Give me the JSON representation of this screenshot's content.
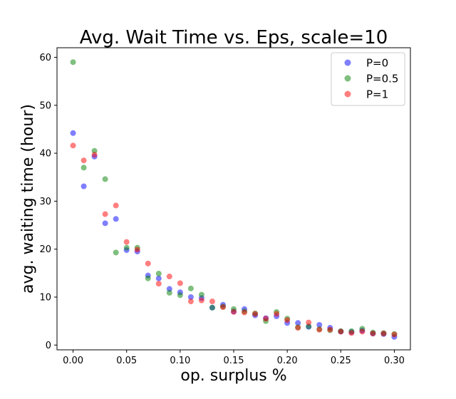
{
  "chart_data": {
    "type": "scatter",
    "title": "Avg. Wait Time vs. Eps, scale=10",
    "xlabel": "op. surplus %",
    "ylabel": "avg. waiting time (hour)",
    "xlim": [
      -0.015,
      0.315
    ],
    "ylim": [
      -1.0,
      62.0
    ],
    "xticks": [
      0.0,
      0.05,
      0.1,
      0.15,
      0.2,
      0.25,
      0.3
    ],
    "xtick_labels": [
      "0.00",
      "0.05",
      "0.10",
      "0.15",
      "0.20",
      "0.25",
      "0.30"
    ],
    "yticks": [
      0,
      10,
      20,
      30,
      40,
      50,
      60
    ],
    "ytick_labels": [
      "0",
      "10",
      "20",
      "30",
      "40",
      "50",
      "60"
    ],
    "grid": false,
    "legend_position": "top-right",
    "x": [
      0.0,
      0.01,
      0.02,
      0.03,
      0.04,
      0.05,
      0.06,
      0.07,
      0.08,
      0.09,
      0.1,
      0.11,
      0.12,
      0.13,
      0.14,
      0.15,
      0.16,
      0.17,
      0.18,
      0.19,
      0.2,
      0.21,
      0.22,
      0.23,
      0.24,
      0.25,
      0.26,
      0.27,
      0.28,
      0.29,
      0.3
    ],
    "series": [
      {
        "name": "P=0",
        "color": "#0000ff",
        "values": [
          44.2,
          33.1,
          39.3,
          25.4,
          26.3,
          19.8,
          19.5,
          14.5,
          13.9,
          11.7,
          11.0,
          10.0,
          9.8,
          7.8,
          8.4,
          7.0,
          7.5,
          6.2,
          5.6,
          6.0,
          4.6,
          4.6,
          3.8,
          4.2,
          3.6,
          2.8,
          2.7,
          3.0,
          2.4,
          2.3,
          1.7
        ]
      },
      {
        "name": "P=0.5",
        "color": "#008000",
        "values": [
          59.0,
          37.0,
          40.5,
          34.6,
          19.3,
          20.3,
          20.3,
          13.9,
          14.9,
          10.9,
          10.4,
          11.8,
          10.5,
          7.8,
          8.0,
          7.5,
          7.0,
          6.6,
          5.0,
          6.9,
          5.5,
          3.7,
          3.9,
          3.3,
          3.1,
          2.9,
          2.9,
          3.4,
          2.6,
          2.5,
          2.3
        ]
      },
      {
        "name": "P=1",
        "color": "#ff0000",
        "values": [
          41.6,
          38.5,
          39.7,
          27.3,
          29.1,
          21.5,
          19.9,
          17.0,
          12.8,
          14.3,
          12.9,
          9.1,
          9.3,
          9.1,
          7.9,
          6.9,
          6.8,
          6.5,
          5.5,
          6.5,
          5.2,
          3.6,
          4.7,
          3.2,
          3.2,
          2.8,
          2.5,
          2.8,
          2.4,
          2.4,
          2.2
        ]
      }
    ]
  }
}
